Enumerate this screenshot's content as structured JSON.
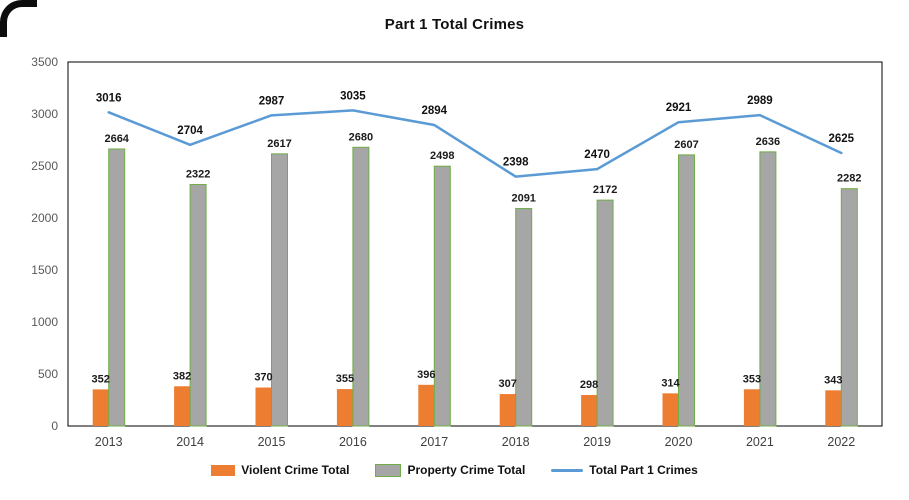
{
  "title": "Part 1 Total Crimes",
  "chart_data": {
    "type": "bar+line",
    "title": "Part 1 Total Crimes",
    "categories": [
      "2013",
      "2014",
      "2015",
      "2016",
      "2017",
      "2018",
      "2019",
      "2020",
      "2021",
      "2022"
    ],
    "series": [
      {
        "name": "Violent Crime Total",
        "type": "bar",
        "color": "#ED7D31",
        "values": [
          352,
          382,
          370,
          355,
          396,
          307,
          298,
          314,
          353,
          343
        ]
      },
      {
        "name": "Property Crime Total",
        "type": "bar",
        "color": "#A6A6A6",
        "border_color": "#70AD47",
        "values": [
          2664,
          2322,
          2617,
          2680,
          2498,
          2091,
          2172,
          2607,
          2636,
          2282
        ]
      },
      {
        "name": "Total Part 1 Crimes",
        "type": "line",
        "color": "#5B9BD5",
        "values": [
          3016,
          2704,
          2987,
          3035,
          2894,
          2398,
          2470,
          2921,
          2989,
          2625
        ]
      }
    ],
    "ylim": [
      0,
      3500
    ],
    "yticks": [
      0,
      500,
      1000,
      1500,
      2000,
      2500,
      3000,
      3500
    ],
    "grid": false,
    "legend_position": "bottom",
    "axis_text_color": "#595959",
    "x_axis_text_color": "#404040",
    "plot_border_color": "#000000",
    "data_labels_shown": true
  }
}
